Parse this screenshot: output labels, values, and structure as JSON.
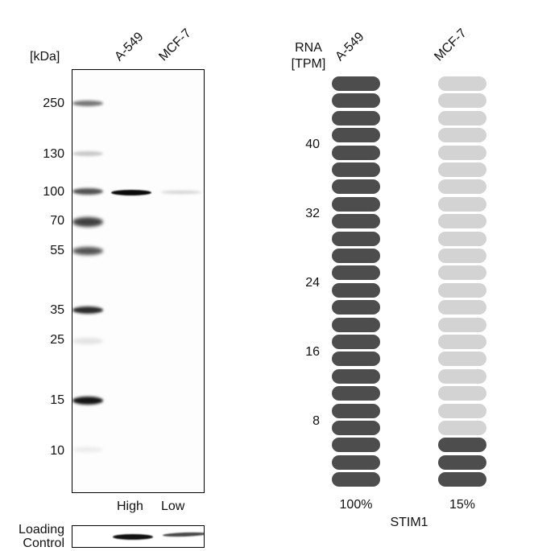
{
  "western_blot": {
    "unit_label": "[kDa]",
    "lanes": [
      "A-549",
      "MCF-7"
    ],
    "markers": [
      "250",
      "130",
      "100",
      "70",
      "55",
      "35",
      "25",
      "15",
      "10"
    ],
    "expression_levels": [
      "High",
      "Low"
    ],
    "loading_control_label_line1": "Loading",
    "loading_control_label_line2": "Control"
  },
  "rna": {
    "axis_label_line1": "RNA",
    "axis_label_line2": "[TPM]",
    "cell_lines": [
      "A-549",
      "MCF-7"
    ],
    "ticks": [
      "40",
      "32",
      "24",
      "16",
      "8"
    ],
    "percentages": [
      "100%",
      "15%"
    ],
    "gene": "STIM1"
  },
  "chart_data": {
    "type": "bar",
    "title": "STIM1",
    "ylabel": "RNA [TPM]",
    "categories": [
      "A-549",
      "MCF-7"
    ],
    "values_percent_of_max": [
      100,
      15
    ],
    "pill_count_total": 24,
    "pills_filled": [
      24,
      3
    ],
    "yticks": [
      8,
      16,
      24,
      32,
      40
    ],
    "colors": {
      "filled": "#4d4d4d",
      "empty": "#d3d3d3"
    }
  }
}
